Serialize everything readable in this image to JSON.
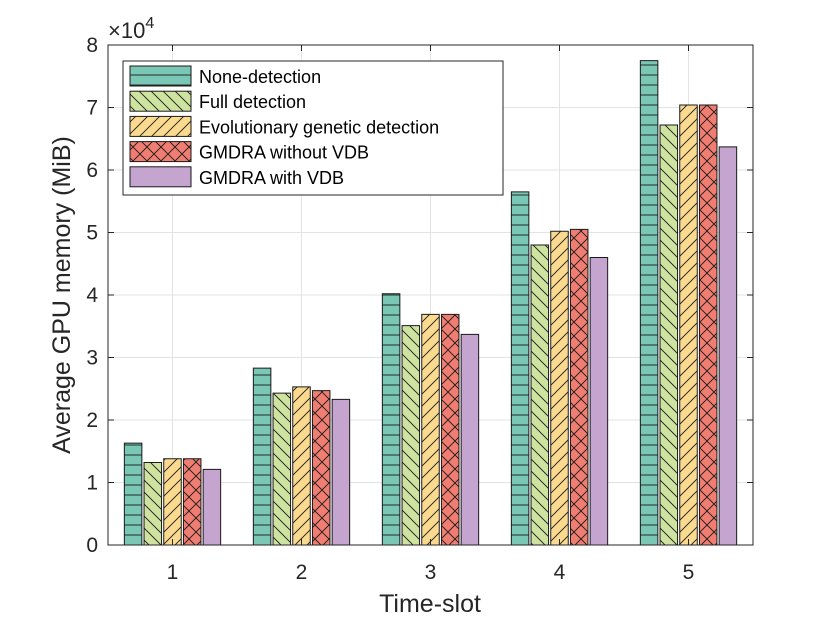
{
  "chart_data": {
    "type": "bar",
    "title": "",
    "xlabel": "Time-slot",
    "ylabel": "Average GPU memory (MiB)",
    "categories": [
      "1",
      "2",
      "3",
      "4",
      "5"
    ],
    "ylim": [
      0,
      8
    ],
    "yticks": [
      "0",
      "1",
      "2",
      "3",
      "4",
      "5",
      "6",
      "7",
      "8"
    ],
    "y_multiplier_base": "10",
    "y_multiplier_exponent": "4",
    "y_multiplier_symbol": "×",
    "grid": true,
    "legend_position": "top-left",
    "series": [
      {
        "name": "None-detection",
        "color": "#79c7b4",
        "pattern": "horizontal",
        "values": [
          1.63,
          2.83,
          4.02,
          5.65,
          7.75
        ]
      },
      {
        "name": "Full detection",
        "color": "#cfe3a0",
        "pattern": "backslash",
        "values": [
          1.32,
          2.43,
          3.51,
          4.8,
          6.72
        ]
      },
      {
        "name": "Evolutionary genetic detection",
        "color": "#fbda8f",
        "pattern": "slash",
        "values": [
          1.38,
          2.53,
          3.69,
          5.02,
          7.04
        ]
      },
      {
        "name": "GMDRA without VDB",
        "color": "#ef7d72",
        "pattern": "cross",
        "values": [
          1.38,
          2.47,
          3.69,
          5.05,
          7.04
        ]
      },
      {
        "name": "GMDRA with VDB",
        "color": "#c5a5d0",
        "pattern": "none",
        "values": [
          1.21,
          2.33,
          3.37,
          4.6,
          6.37
        ]
      }
    ]
  }
}
